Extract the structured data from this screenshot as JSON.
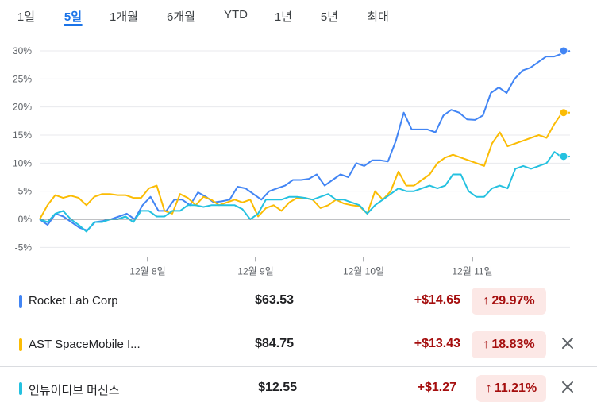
{
  "tabs": [
    {
      "label": "1일",
      "active": false
    },
    {
      "label": "5일",
      "active": true
    },
    {
      "label": "1개월",
      "active": false
    },
    {
      "label": "6개월",
      "active": false
    },
    {
      "label": "YTD",
      "active": false
    },
    {
      "label": "1년",
      "active": false
    },
    {
      "label": "5년",
      "active": false
    },
    {
      "label": "최대",
      "active": false
    }
  ],
  "chart_data": {
    "type": "line",
    "y_ticks": [
      "30%",
      "25%",
      "20%",
      "15%",
      "10%",
      "5%",
      "0%",
      "-5%"
    ],
    "x_ticks": [
      "12월 8일",
      "12월 9일",
      "12월 10일",
      "12월 11일"
    ],
    "ylim": [
      -5,
      30
    ],
    "series": [
      {
        "name": "Rocket Lab Corp",
        "color": "#4285f4",
        "values": [
          0,
          -1,
          1,
          0.5,
          -0.5,
          -1.5,
          -2,
          -0.5,
          -0.3,
          0,
          0.5,
          1,
          0,
          2.5,
          4,
          1.5,
          1.5,
          3.5,
          3.5,
          2.5,
          4.8,
          4,
          3,
          3.2,
          3.5,
          5.8,
          5.5,
          4.5,
          3.5,
          5,
          5.5,
          6,
          7,
          7,
          7.2,
          8,
          6,
          7,
          8,
          7.5,
          10,
          9.5,
          10.5,
          10.5,
          10.3,
          14,
          19,
          16,
          16,
          16,
          15.5,
          18.5,
          19.5,
          19,
          17.8,
          17.7,
          18.5,
          22.5,
          23.5,
          22.5,
          25,
          26.5,
          27,
          28,
          29,
          29,
          29.5,
          30
        ]
      },
      {
        "name": "AST SpaceMobile I...",
        "color": "#fbbc04",
        "values": [
          0,
          2.5,
          4.3,
          3.8,
          4.2,
          3.8,
          2.5,
          4,
          4.5,
          4.5,
          4.3,
          4.3,
          3.8,
          3.8,
          5.5,
          6,
          1.5,
          1,
          4.5,
          3.8,
          2.5,
          4,
          3.5,
          2.5,
          3,
          3.5,
          3,
          3.5,
          0.5,
          2,
          2.5,
          1.5,
          3,
          3.8,
          3.8,
          3.5,
          2,
          2.5,
          3.5,
          2.8,
          2.5,
          2.3,
          1,
          5,
          3.5,
          5,
          8.5,
          6,
          6,
          7,
          8,
          10,
          11,
          11.5,
          11,
          10.5,
          10,
          9.5,
          13.5,
          15.5,
          13,
          13.5,
          14,
          14.5,
          15,
          14.5,
          17,
          19,
          19
        ]
      },
      {
        "name": "인튜이티브 머신스",
        "color": "#24c1e0",
        "values": [
          0,
          -0.5,
          1,
          1.5,
          0,
          -1,
          -2.2,
          -0.5,
          -0.5,
          0,
          0,
          0.5,
          -0.5,
          1.5,
          1.5,
          0.5,
          0.5,
          1.5,
          1.5,
          2.5,
          2.5,
          2.2,
          2.5,
          2.5,
          2.5,
          2.5,
          1.8,
          0,
          1,
          3.5,
          3.5,
          3.5,
          4,
          4,
          3.8,
          3.5,
          4,
          4.5,
          3.5,
          3.5,
          3,
          2.5,
          1,
          2.5,
          3.5,
          4.5,
          5.5,
          5,
          5,
          5.5,
          6,
          5.5,
          6,
          8,
          8,
          5,
          4,
          4,
          5.5,
          6,
          5.5,
          9,
          9.5,
          9,
          9.5,
          10,
          12,
          11,
          11.2
        ]
      }
    ]
  },
  "rows": [
    {
      "name": "Rocket Lab Corp",
      "color": "#4285f4",
      "price": "$63.53",
      "change": "+$14.65",
      "percent": "29.97%",
      "closable": false
    },
    {
      "name": "AST SpaceMobile I...",
      "color": "#fbbc04",
      "price": "$84.75",
      "change": "+$13.43",
      "percent": "18.83%",
      "closable": true
    },
    {
      "name": "인튜이티브 머신스",
      "color": "#24c1e0",
      "price": "$12.55",
      "change": "+$1.27",
      "percent": "11.21%",
      "closable": true
    }
  ],
  "icons": {
    "percent_arrow": "arrow-up-icon",
    "remove": "close-icon"
  },
  "arrow_glyph": "↑"
}
